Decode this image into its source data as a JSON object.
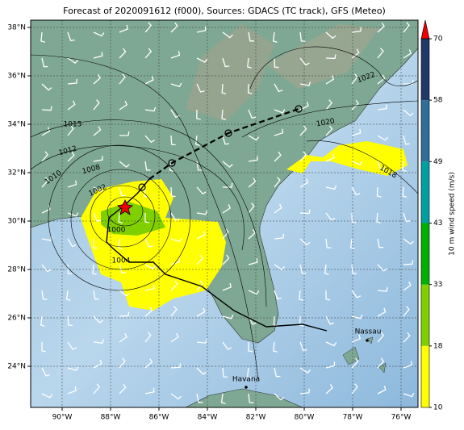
{
  "map": {
    "title": "Forecast of 2020091612 (f000), Sources: GDACS (TC track), GFS (Meteo)",
    "xlim": [
      -91.3,
      -75.3
    ],
    "ylim": [
      22.3,
      38.3
    ],
    "xticks": [
      {
        "value": -90,
        "label": "90°W"
      },
      {
        "value": -88,
        "label": "88°W"
      },
      {
        "value": -86,
        "label": "86°W"
      },
      {
        "value": -84,
        "label": "84°W"
      },
      {
        "value": -82,
        "label": "82°W"
      },
      {
        "value": -80,
        "label": "80°W"
      },
      {
        "value": -78,
        "label": "78°W"
      },
      {
        "value": -76,
        "label": "76°W"
      }
    ],
    "yticks": [
      {
        "value": 24,
        "label": "24°N"
      },
      {
        "value": 26,
        "label": "26°N"
      },
      {
        "value": 28,
        "label": "28°N"
      },
      {
        "value": 30,
        "label": "30°N"
      },
      {
        "value": 32,
        "label": "32°N"
      },
      {
        "value": 34,
        "label": "34°N"
      },
      {
        "value": 36,
        "label": "36°N"
      },
      {
        "value": 38,
        "label": "38°N"
      }
    ],
    "grid": true,
    "colorbar": {
      "label": "10 m wind speed (m/s)",
      "ticks": [
        10,
        18,
        33,
        43,
        49,
        58,
        70
      ],
      "colors": [
        "#ffff00",
        "#80d000",
        "#00b000",
        "#00a0a0",
        "#2f6d9a",
        "#1f3a6a"
      ],
      "extend_color": "#ee0000"
    },
    "isobar_labels": [
      "1022",
      "1020",
      "1015",
      "1012",
      "1010",
      "1008",
      "1002",
      "1000",
      "1004",
      "1018"
    ],
    "places": [
      "Havana",
      "Nassau"
    ]
  }
}
